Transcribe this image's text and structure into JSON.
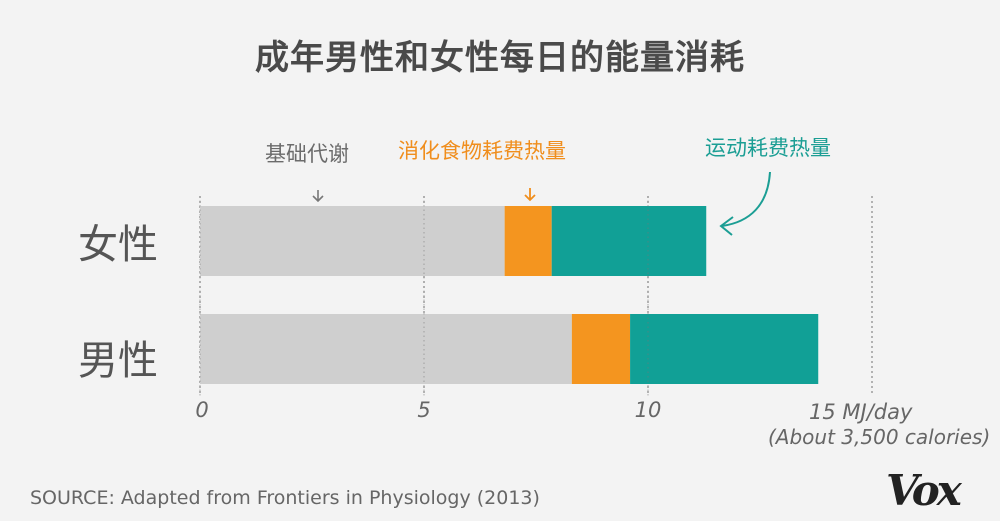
{
  "chart_data": {
    "type": "bar",
    "orientation": "horizontal",
    "stacked": true,
    "title": "成年男性和女性每日的能量消耗",
    "categories": [
      "女性",
      "男性"
    ],
    "series": [
      {
        "name": "基础代谢",
        "values": [
          6.8,
          8.3
        ],
        "color": "#cfcfcf"
      },
      {
        "name": "消化食物耗费热量",
        "values": [
          1.05,
          1.3
        ],
        "color": "#f4951f"
      },
      {
        "name": "运动耗费热量",
        "values": [
          3.45,
          4.2
        ],
        "color": "#11a096"
      }
    ],
    "xlim": [
      0,
      15
    ],
    "x_ticks": [
      "0",
      "5",
      "10"
    ],
    "x_unit_label": "15 MJ/day",
    "x_note": "(About 3,500 calories)",
    "grid": "dotted vertical lines at 0, 5, 10, 15",
    "legend": "inline annotations above bars with arrows"
  },
  "source": "SOURCE: Adapted from Frontiers in Physiology (2013)",
  "logo": "Vox",
  "colors": {
    "background": "#f3f3f3",
    "bmr": "#cfcfcf",
    "food": "#f4951f",
    "exercise": "#11a096"
  }
}
